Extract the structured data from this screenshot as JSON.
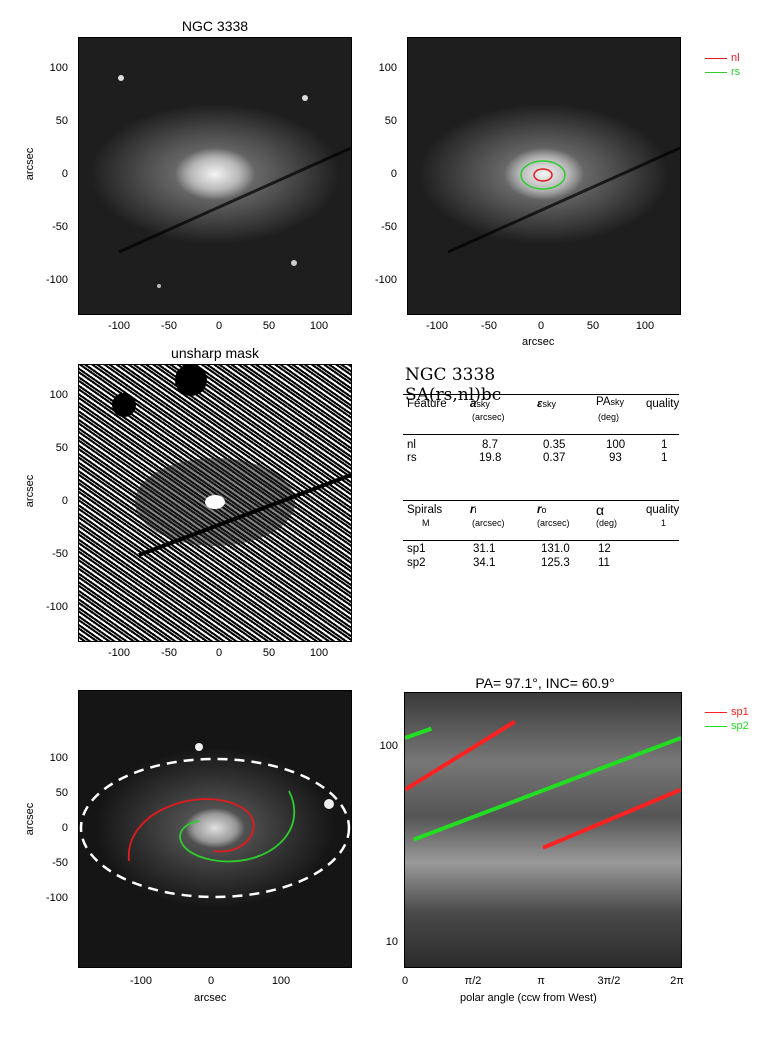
{
  "panel1": {
    "title": "NGC 3338",
    "ylabel": "arcsec",
    "yticks": [
      "100",
      "50",
      "0",
      "-50",
      "-100"
    ],
    "xticks": [
      "-100",
      "-50",
      "0",
      "50",
      "100"
    ]
  },
  "panel2": {
    "xlabel": "arcsec",
    "yticks": [
      "100",
      "50",
      "0",
      "-50",
      "-100"
    ],
    "xticks": [
      "-100",
      "-50",
      "0",
      "50",
      "100"
    ],
    "legend": [
      {
        "label": "nl",
        "color": "#e41a1c"
      },
      {
        "label": "rs",
        "color": "#2ecc2e"
      }
    ]
  },
  "panel3": {
    "title": "unsharp mask",
    "ylabel": "arcsec",
    "yticks": [
      "100",
      "50",
      "0",
      "-50",
      "-100"
    ],
    "xticks": [
      "-100",
      "-50",
      "0",
      "50",
      "100"
    ]
  },
  "table": {
    "title": "NGC 3338  SA(rs,nl)bc",
    "h1": {
      "feature": "Feature",
      "a": "a",
      "a_sub": "sky",
      "a_unit": "(arcsec)",
      "e": "ε",
      "e_sub": "sky",
      "pa": "PA",
      "pa_sub": "sky",
      "pa_unit": "(deg)",
      "quality": "quality"
    },
    "rows1": [
      {
        "name": "nl",
        "a": "8.7",
        "e": "0.35",
        "pa": "100",
        "q": "1"
      },
      {
        "name": "rs",
        "a": "19.8",
        "e": "0.37",
        "pa": "93",
        "q": "1"
      }
    ],
    "h2": {
      "spirals": "Spirals",
      "m": "M",
      "ri": "r",
      "ri_sub": "i",
      "ri_unit": "(arcsec)",
      "ro": "r",
      "ro_sub": "o",
      "ro_unit": "(arcsec)",
      "alpha": "α",
      "alpha_unit": "(deg)",
      "quality": "quality",
      "q_val": "1"
    },
    "rows2": [
      {
        "name": "sp1",
        "ri": "31.1",
        "ro": "131.0",
        "alpha": "12"
      },
      {
        "name": "sp2",
        "ri": "34.1",
        "ro": "125.3",
        "alpha": "11"
      }
    ]
  },
  "panel5": {
    "xlabel": "arcsec",
    "ylabel": "arcsec",
    "yticks": [
      "100",
      "50",
      "0",
      "-50",
      "-100"
    ],
    "xticks": [
      "-100",
      "0",
      "100"
    ]
  },
  "panel6": {
    "title": "PA=  97.1°, INC=  60.9°",
    "xlabel": "polar angle (ccw from West)",
    "xticks": [
      "0",
      "π/2",
      "π",
      "3π/2",
      "2π"
    ],
    "yticks": [
      "100",
      "10"
    ],
    "legend": [
      {
        "label": "sp1",
        "color": "#ff2020"
      },
      {
        "label": "sp2",
        "color": "#22dd22"
      }
    ]
  },
  "chart_data": {
    "type": "line",
    "title": "PA=  97.1°, INC=  60.9°",
    "xlabel": "polar angle (ccw from West)",
    "ylabel": "",
    "yscale": "log",
    "xlim": [
      0,
      6.2832
    ],
    "ylim": [
      8,
      180
    ],
    "series": [
      {
        "name": "sp1",
        "color": "#ff2020",
        "segments": [
          [
            [
              0,
              60
            ],
            [
              2.5,
              130
            ]
          ],
          [
            [
              3.14,
              31
            ],
            [
              6.28,
              60
            ]
          ]
        ]
      },
      {
        "name": "sp2",
        "color": "#22dd22",
        "segments": [
          [
            [
              0,
              108
            ],
            [
              0.6,
              120
            ]
          ],
          [
            [
              0.2,
              34
            ],
            [
              6.28,
              108
            ]
          ]
        ]
      }
    ]
  }
}
